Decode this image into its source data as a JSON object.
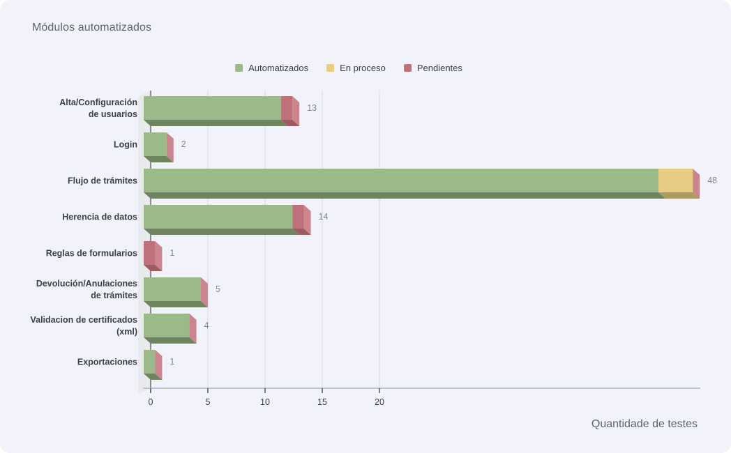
{
  "chart_data": {
    "type": "bar",
    "orientation": "horizontal",
    "style": "3d-stacked",
    "title": "Módulos automatizados",
    "xlabel": "Quantidade de testes",
    "ylabel": "",
    "categories": [
      "Alta/Configuración de usuarios",
      "Login",
      "Flujo de trámites",
      "Herencia de datos",
      "Reglas de formularios",
      "Devolución/Anulaciones de trámites",
      "Validacion de certificados (xml)",
      "Exportaciones"
    ],
    "category_label_lines": [
      [
        "Alta/Configuración",
        "de usuarios"
      ],
      [
        "Login"
      ],
      [
        "Flujo de trámites"
      ],
      [
        "Herencia de datos"
      ],
      [
        "Reglas de formularios"
      ],
      [
        "Devolución/Anulaciones",
        "de trámites"
      ],
      [
        "Validacion de certificados",
        "(xml)"
      ],
      [
        "Exportaciones"
      ]
    ],
    "series": [
      {
        "name": "Automatizados",
        "color": "#9cb989",
        "shade_bottom": "#6f8560",
        "values": [
          12,
          2,
          45,
          13,
          0,
          5,
          4,
          1
        ]
      },
      {
        "name": "En proceso",
        "color": "#e8cc84",
        "shade_bottom": "#a89c5f",
        "values": [
          0,
          0,
          3,
          0,
          0,
          0,
          0,
          0
        ]
      },
      {
        "name": "Pendientes",
        "color": "#c0707a",
        "shade_bottom": "#9c5a62",
        "values": [
          1,
          0,
          0,
          1,
          1,
          0,
          0,
          0
        ]
      }
    ],
    "totals": [
      13,
      2,
      48,
      14,
      1,
      5,
      4,
      1
    ],
    "x_ticks": [
      0,
      5,
      10,
      15,
      20
    ],
    "xlim": [
      0,
      48.8
    ],
    "grid": true,
    "legend_position": "top"
  },
  "colors": {
    "card_background": "#f2f3fa",
    "wall": "#e9eaee",
    "end_cap": "#ca858e",
    "gridline": "#d8dae0",
    "y_axis_line": "#6f7276",
    "baseline": "#b2b5bc",
    "tick": "#5f6368",
    "tick_label": "#3c4043",
    "category_label": "#3c4043",
    "value_label": "#84878c",
    "title_text": "#5f6368"
  }
}
